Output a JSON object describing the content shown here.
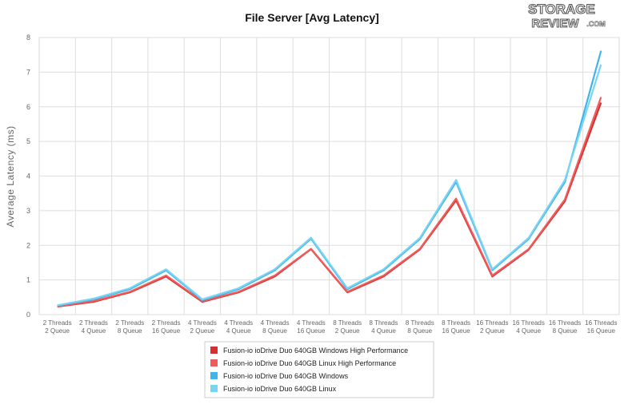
{
  "chart_data": {
    "type": "line",
    "title": "File Server [Avg Latency]",
    "xlabel": "",
    "ylabel": "Average Latency (ms)",
    "ylim": [
      0,
      8
    ],
    "yticks": [
      0,
      1,
      2,
      3,
      4,
      5,
      6,
      7,
      8
    ],
    "grid": true,
    "legend_position": "bottom",
    "categories": [
      [
        "2 Threads",
        "2 Queue"
      ],
      [
        "2 Threads",
        "4 Queue"
      ],
      [
        "2 Threads",
        "8 Queue"
      ],
      [
        "2 Threads",
        "16 Queue"
      ],
      [
        "4 Threads",
        "2 Queue"
      ],
      [
        "4 Threads",
        "4 Queue"
      ],
      [
        "4 Threads",
        "8 Queue"
      ],
      [
        "4 Threads",
        "16 Queue"
      ],
      [
        "8 Threads",
        "2 Queue"
      ],
      [
        "8 Threads",
        "4 Queue"
      ],
      [
        "8 Threads",
        "8 Queue"
      ],
      [
        "8 Threads",
        "16 Queue"
      ],
      [
        "16 Threads",
        "2 Queue"
      ],
      [
        "16 Threads",
        "4 Queue"
      ],
      [
        "16 Threads",
        "8 Queue"
      ],
      [
        "16 Threads",
        "16 Queue"
      ]
    ],
    "series": [
      {
        "name": "Fusion-io ioDrive Duo 640GB Windows High Performance",
        "color": "#d62f2f",
        "values": [
          0.23,
          0.37,
          0.64,
          1.1,
          0.37,
          0.64,
          1.1,
          1.89,
          0.64,
          1.1,
          1.88,
          3.3,
          1.1,
          1.87,
          3.27,
          6.12
        ]
      },
      {
        "name": "Fusion-io ioDrive Duo 640GB Linux High Performance",
        "color": "#f05b5b",
        "values": [
          0.24,
          0.39,
          0.66,
          1.13,
          0.39,
          0.66,
          1.13,
          1.9,
          0.66,
          1.13,
          1.9,
          3.35,
          1.13,
          1.89,
          3.32,
          6.28
        ]
      },
      {
        "name": "Fusion-io ioDrive Duo 640GB Windows",
        "color": "#3fb4ea",
        "values": [
          0.26,
          0.44,
          0.73,
          1.28,
          0.42,
          0.73,
          1.28,
          2.19,
          0.73,
          1.28,
          2.18,
          3.83,
          1.28,
          2.18,
          3.82,
          7.62
        ]
      },
      {
        "name": "Fusion-io ioDrive Duo 640GB Linux",
        "color": "#78d4f5",
        "values": [
          0.27,
          0.46,
          0.76,
          1.31,
          0.44,
          0.76,
          1.31,
          2.22,
          0.76,
          1.31,
          2.21,
          3.89,
          1.31,
          2.21,
          3.88,
          7.22
        ]
      }
    ]
  },
  "logo": {
    "line1": "STORAGE",
    "line2": "REVIEW",
    "line3": ".COM"
  }
}
